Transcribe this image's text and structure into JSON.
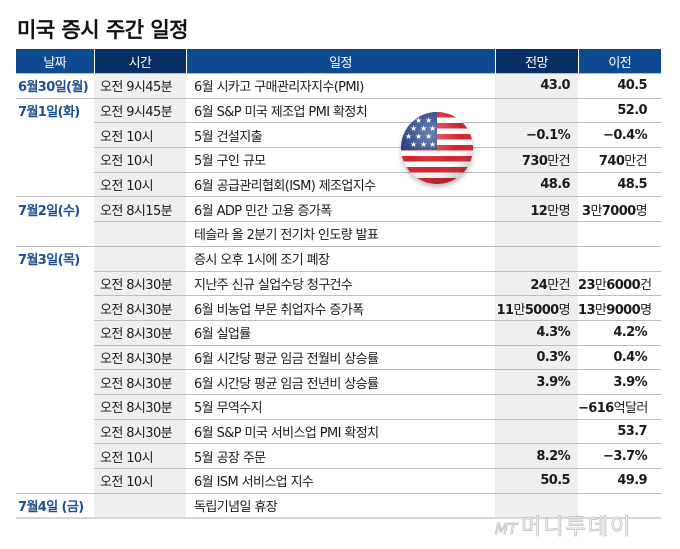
{
  "title": "미국 증시 주간 일정",
  "colors": {
    "header_light": "#0d4a8f",
    "header_dark": "#072f63",
    "date_text": "#1c4f93",
    "shaded_column": "#efefef"
  },
  "table": {
    "headers": [
      "날짜",
      "시간",
      "일정",
      "전망",
      "이전"
    ],
    "rows": [
      {
        "date": "6월30일(월)",
        "time": "오전 9시45분",
        "event": "6월 시카고 구매관리자지수(PMI)",
        "forecast": "43.0",
        "previous": "40.5"
      },
      {
        "date": "7월1일(화)",
        "time": "오전 9시45분",
        "event": "6월 S&P 미국 제조업 PMI 확정치",
        "forecast": "",
        "previous": "52.0"
      },
      {
        "date": "",
        "time": "오전 10시",
        "event": "5월 건설지출",
        "forecast": "−0.1%",
        "previous": "−0.4%"
      },
      {
        "date": "",
        "time": "오전 10시",
        "event": "5월 구인 규모",
        "forecast": "730만건",
        "previous": "740만건"
      },
      {
        "date": "",
        "time": "오전 10시",
        "event": "6월 공급관리협회(ISM) 제조업지수",
        "forecast": "48.6",
        "previous": "48.5"
      },
      {
        "date": "7월2일(수)",
        "time": "오전 8시15분",
        "event": "6월 ADP 민간 고용 증가폭",
        "forecast": "12만명",
        "previous": "3만7000명"
      },
      {
        "date": "",
        "time": "",
        "event": "테슬라 올 2분기 전기차 인도량 발표",
        "forecast": "",
        "previous": ""
      },
      {
        "date": "7월3일(목)",
        "time": "",
        "event": "증시 오후 1시에 조기 폐장",
        "forecast": "",
        "previous": ""
      },
      {
        "date": "",
        "time": "오전 8시30분",
        "event": "지난주 신규 실업수당 청구건수",
        "forecast": "24만건",
        "previous": "23만6000건"
      },
      {
        "date": "",
        "time": "오전 8시30분",
        "event": "6월 비농업 부문 취업자수 증가폭",
        "forecast": "11만5000명",
        "previous": "13만9000명"
      },
      {
        "date": "",
        "time": "오전 8시30분",
        "event": "6월 실업률",
        "forecast": "4.3%",
        "previous": "4.2%"
      },
      {
        "date": "",
        "time": "오전 8시30분",
        "event": "6월 시간당 평균 임금 전월비 상승률",
        "forecast": "0.3%",
        "previous": "0.4%"
      },
      {
        "date": "",
        "time": "오전 8시30분",
        "event": "6월 시간당 평균 임금 전년비 상승률",
        "forecast": "3.9%",
        "previous": "3.9%"
      },
      {
        "date": "",
        "time": "오전 8시30분",
        "event": "5월 무역수지",
        "forecast": "",
        "previous": "−616억달러"
      },
      {
        "date": "",
        "time": "오전 8시30분",
        "event": "6월 S&P 미국 서비스업 PMI 확정치",
        "forecast": "",
        "previous": "53.7"
      },
      {
        "date": "",
        "time": "오전 10시",
        "event": "5월 공장 주문",
        "forecast": "8.2%",
        "previous": "−3.7%"
      },
      {
        "date": "",
        "time": "오전 10시",
        "event": "6월 ISM 서비스업 지수",
        "forecast": "50.5",
        "previous": "49.9"
      },
      {
        "date": "7월4일 (금)",
        "time": "",
        "event": "독립기념일 휴장",
        "forecast": "",
        "previous": ""
      }
    ]
  },
  "decorations": {
    "flag_icon": "us-flag-ball-icon"
  },
  "watermark": {
    "logo": "MT",
    "text": "머니투데이"
  }
}
